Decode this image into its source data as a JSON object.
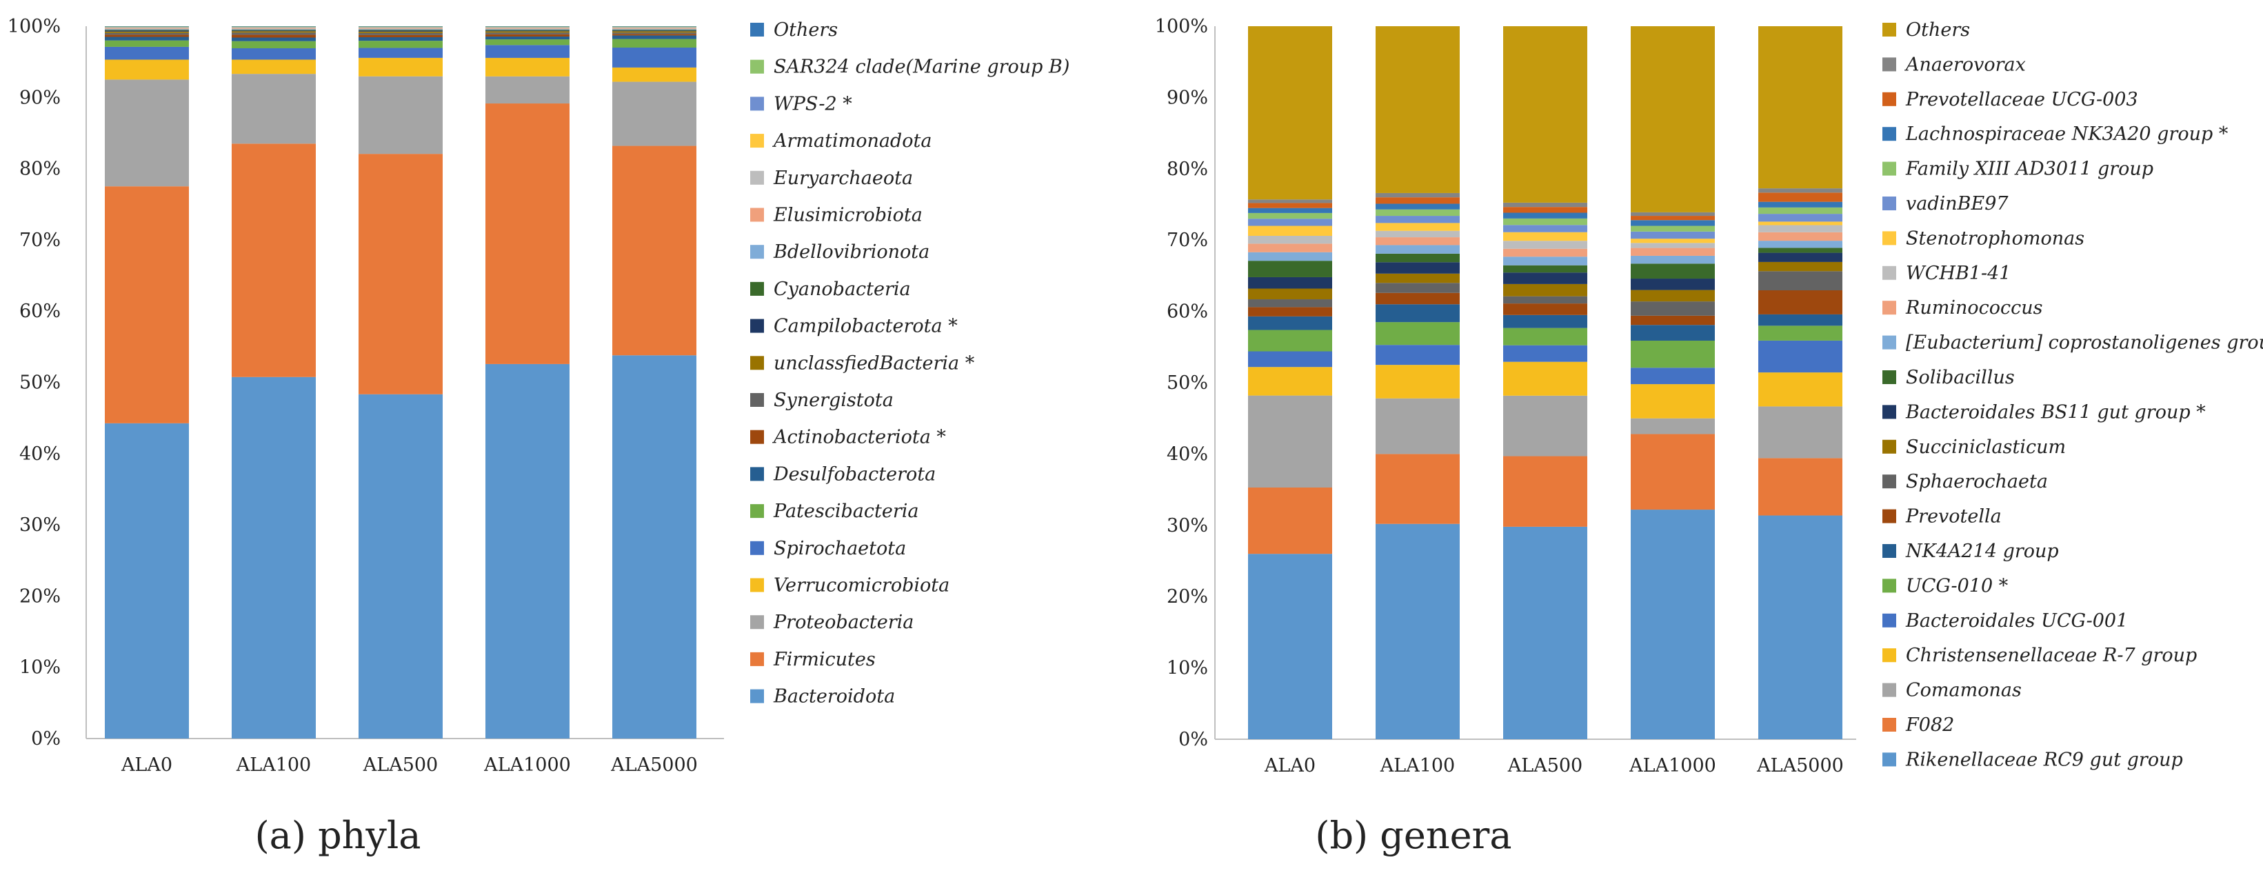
{
  "chart_data": [
    {
      "type": "bar",
      "stacked": true,
      "caption": "(a) phyla",
      "categories": [
        "ALA0",
        "ALA100",
        "ALA500",
        "ALA1000",
        "ALA5000"
      ],
      "y_ticks": [
        "0%",
        "10%",
        "20%",
        "30%",
        "40%",
        "50%",
        "60%",
        "70%",
        "80%",
        "90%",
        "100%"
      ],
      "ylim": [
        0,
        100
      ],
      "series": [
        {
          "name": "Bacteroidota",
          "color": "#5b96cd",
          "values": [
            44.3,
            50.8,
            48.4,
            52.6,
            53.8
          ]
        },
        {
          "name": "Firmicutes",
          "color": "#e8793a",
          "values": [
            33.3,
            32.8,
            33.8,
            36.6,
            29.4
          ]
        },
        {
          "name": "Proteobacteria",
          "color": "#a5a5a5",
          "values": [
            15.0,
            9.8,
            10.9,
            3.8,
            9.0
          ]
        },
        {
          "name": "Verrucomicrobiota",
          "color": "#f6bd1e",
          "values": [
            2.8,
            2.0,
            2.6,
            2.6,
            2.0
          ]
        },
        {
          "name": "Spirochaetota",
          "color": "#4472c4",
          "values": [
            1.8,
            1.6,
            1.4,
            1.8,
            2.8
          ]
        },
        {
          "name": "Patescibacteria",
          "color": "#70ad47",
          "values": [
            0.9,
            1.0,
            1.0,
            0.8,
            1.2
          ]
        },
        {
          "name": "Desulfobacterota",
          "color": "#255e91",
          "values": [
            0.5,
            0.5,
            0.5,
            0.4,
            0.5
          ]
        },
        {
          "name": "Actinobacteriota *",
          "color": "#9e480e",
          "values": [
            0.3,
            0.4,
            0.3,
            0.3,
            0.2
          ]
        },
        {
          "name": "Synergistota",
          "color": "#636363",
          "values": [
            0.25,
            0.3,
            0.3,
            0.25,
            0.2
          ]
        },
        {
          "name": "unclassfiedBacteria *",
          "color": "#997300",
          "values": [
            0.2,
            0.2,
            0.2,
            0.2,
            0.2
          ]
        },
        {
          "name": "Campilobacterota *",
          "color": "#1f3864",
          "values": [
            0.15,
            0.1,
            0.15,
            0.1,
            0.1
          ]
        },
        {
          "name": "Cyanobacteria",
          "color": "#3a6a2b",
          "values": [
            0.1,
            0.1,
            0.1,
            0.1,
            0.1
          ]
        },
        {
          "name": "Bdellovibrionota",
          "color": "#7facd8",
          "values": [
            0.1,
            0.1,
            0.1,
            0.1,
            0.1
          ]
        },
        {
          "name": "Elusimicrobiota",
          "color": "#f0a07c",
          "values": [
            0.1,
            0.1,
            0.1,
            0.1,
            0.1
          ]
        },
        {
          "name": "Euryarchaeota",
          "color": "#bdbdbd",
          "values": [
            0.1,
            0.1,
            0.1,
            0.1,
            0.1
          ]
        },
        {
          "name": "Armatimonadota",
          "color": "#ffc83d",
          "values": [
            0.05,
            0.05,
            0.05,
            0.05,
            0.05
          ]
        },
        {
          "name": "WPS-2 *",
          "color": "#6f8fd0",
          "values": [
            0.05,
            0.05,
            0.05,
            0.05,
            0.05
          ]
        },
        {
          "name": "SAR324 clade(Marine group B)",
          "color": "#8fc36b",
          "values": [
            0.05,
            0.05,
            0.05,
            0.05,
            0.05
          ]
        },
        {
          "name": "Others",
          "color": "#3576b5",
          "values": [
            0.05,
            0.05,
            0.05,
            0.05,
            0.05
          ]
        }
      ]
    },
    {
      "type": "bar",
      "stacked": true,
      "caption": "(b) genera",
      "categories": [
        "ALA0",
        "ALA100",
        "ALA500",
        "ALA1000",
        "ALA5000"
      ],
      "y_ticks": [
        "0%",
        "10%",
        "20%",
        "30%",
        "40%",
        "50%",
        "60%",
        "70%",
        "80%",
        "90%",
        "100%"
      ],
      "ylim": [
        0,
        100
      ],
      "series": [
        {
          "name": "Rikenellaceae RC9 gut group",
          "color": "#5b96cd",
          "values": [
            26.0,
            30.2,
            29.5,
            32.2,
            31.6
          ]
        },
        {
          "name": "F082",
          "color": "#e8793a",
          "values": [
            9.3,
            9.8,
            9.8,
            10.6,
            8.1
          ]
        },
        {
          "name": "Comamonas",
          "color": "#a5a5a5",
          "values": [
            12.9,
            7.8,
            8.4,
            2.2,
            7.3
          ]
        },
        {
          "name": "Christensenellaceae R-7 group",
          "color": "#f6bd1e",
          "values": [
            4.0,
            4.7,
            4.7,
            4.8,
            4.8
          ]
        },
        {
          "name": "Bacteroidales UCG-001",
          "color": "#4472c4",
          "values": [
            2.2,
            2.8,
            2.3,
            2.3,
            4.5
          ]
        },
        {
          "name": "UCG-010 *",
          "color": "#70ad47",
          "values": [
            3.0,
            3.2,
            2.4,
            3.8,
            2.1
          ]
        },
        {
          "name": "NK4A214 group",
          "color": "#255e91",
          "values": [
            1.9,
            2.5,
            1.8,
            2.2,
            1.6
          ]
        },
        {
          "name": "Prevotella",
          "color": "#9e480e",
          "values": [
            1.3,
            1.6,
            1.6,
            1.3,
            3.4
          ]
        },
        {
          "name": "Sphaerochaeta",
          "color": "#636363",
          "values": [
            1.1,
            1.4,
            1.0,
            2.0,
            2.7
          ]
        },
        {
          "name": "Succiniclasticum",
          "color": "#997300",
          "values": [
            1.5,
            1.3,
            1.7,
            1.6,
            1.3
          ]
        },
        {
          "name": "Bacteroidales BS11 gut group *",
          "color": "#1f3864",
          "values": [
            1.6,
            1.6,
            1.6,
            1.6,
            1.3
          ]
        },
        {
          "name": "Solibacillus",
          "color": "#3a6a2b",
          "values": [
            2.3,
            1.2,
            1.0,
            2.1,
            0.7
          ]
        },
        {
          "name": "[Eubacterium] coprostanoligenes group",
          "color": "#7facd8",
          "values": [
            1.2,
            1.2,
            1.2,
            1.1,
            1.0
          ]
        },
        {
          "name": "Ruminococcus",
          "color": "#f0a07c",
          "values": [
            1.2,
            1.1,
            1.1,
            1.1,
            1.2
          ]
        },
        {
          "name": "WCHB1-41",
          "color": "#bdbdbd",
          "values": [
            1.1,
            0.9,
            1.1,
            0.7,
            1.0
          ]
        },
        {
          "name": "Stenotrophomonas",
          "color": "#ffc83d",
          "values": [
            1.4,
            1.1,
            1.2,
            0.6,
            0.5
          ]
        },
        {
          "name": "vadinBE97",
          "color": "#6f8fd0",
          "values": [
            1.0,
            1.0,
            1.0,
            1.0,
            1.1
          ]
        },
        {
          "name": "Family XIII AD3011 group",
          "color": "#8fc36b",
          "values": [
            0.8,
            0.9,
            0.9,
            0.8,
            0.9
          ]
        },
        {
          "name": "Lachnospiraceae NK3A20 group *",
          "color": "#3576b5",
          "values": [
            0.7,
            0.8,
            0.8,
            0.8,
            0.8
          ]
        },
        {
          "name": "Prevotellaceae UCG-003",
          "color": "#d2601a",
          "values": [
            0.7,
            0.9,
            0.8,
            0.6,
            1.3
          ]
        },
        {
          "name": "Anaerovorax",
          "color": "#848484",
          "values": [
            0.5,
            0.6,
            0.6,
            0.5,
            0.6
          ]
        },
        {
          "name": "Others",
          "color": "#c49a0e",
          "values": [
            24.3,
            23.4,
            24.5,
            26.1,
            22.9
          ]
        }
      ]
    }
  ]
}
